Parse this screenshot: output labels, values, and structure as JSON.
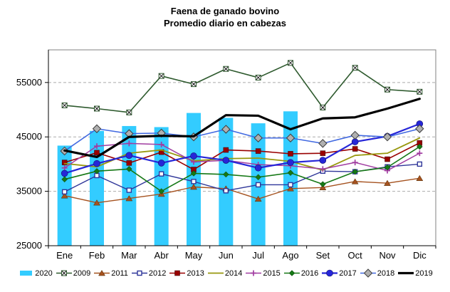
{
  "title": {
    "line1": "Faena de ganado bovino",
    "line2": "Promedio diario en cabezas"
  },
  "chart_data": {
    "type": "bar+line",
    "title": "Faena de ganado bovino",
    "subtitle": "Promedio diario en cabezas",
    "xlabel": "",
    "ylabel": "",
    "ylim": [
      25000,
      61000
    ],
    "yticks": [
      25000,
      35000,
      45000,
      55000
    ],
    "grid": true,
    "legend_position": "bottom",
    "categories": [
      "Ene",
      "Feb",
      "Mar",
      "Abr",
      "May",
      "Jun",
      "Jul",
      "Ago",
      "Set",
      "Oct",
      "Nov",
      "Dic"
    ],
    "bar_series": [
      {
        "name": "2020",
        "color": "#33CCFF",
        "values": [
          43400,
          46100,
          47000,
          46800,
          49400,
          48500,
          47500,
          49700,
          null,
          null,
          null,
          null
        ]
      }
    ],
    "line_series": [
      {
        "name": "2009",
        "color": "#2E5A2E",
        "marker": "x",
        "width": 1.6,
        "values": [
          50800,
          50200,
          49500,
          56200,
          54700,
          57500,
          55900,
          58600,
          50400,
          57700,
          53700,
          53300
        ]
      },
      {
        "name": "2011",
        "color": "#A5521F",
        "marker": "triangle",
        "width": 1.4,
        "values": [
          34200,
          32900,
          33700,
          34500,
          35800,
          35500,
          33600,
          35500,
          35700,
          36800,
          36500,
          37400
        ]
      },
      {
        "name": "2012",
        "color": "#2F3699",
        "marker": "open-square",
        "width": 1.4,
        "values": [
          34900,
          37900,
          35200,
          38200,
          36800,
          35100,
          36200,
          36200,
          38700,
          38600,
          39500,
          40000
        ]
      },
      {
        "name": "2013",
        "color": "#990000",
        "marker": "square",
        "width": 1.6,
        "values": [
          40300,
          42100,
          40200,
          42200,
          39000,
          42600,
          42400,
          41900,
          42000,
          42800,
          40900,
          43900
        ]
      },
      {
        "name": "2014",
        "color": "#98980E",
        "marker": "none",
        "width": 1.8,
        "values": [
          40100,
          39500,
          42000,
          42600,
          40600,
          41000,
          41100,
          40500,
          38900,
          41600,
          42000,
          44800
        ]
      },
      {
        "name": "2015",
        "color": "#A13DA1",
        "marker": "plus",
        "width": 1.5,
        "values": [
          39300,
          43300,
          43800,
          43600,
          40400,
          40700,
          39900,
          39700,
          39100,
          40300,
          38800,
          42000
        ]
      },
      {
        "name": "2016",
        "color": "#157815",
        "marker": "diamond",
        "width": 1.6,
        "values": [
          37200,
          38700,
          39100,
          35000,
          38300,
          38100,
          37600,
          38400,
          36300,
          38600,
          39400,
          43200
        ]
      },
      {
        "name": "2017",
        "color": "#2626D8",
        "marker": "circle",
        "width": 2.2,
        "values": [
          38300,
          40100,
          41600,
          40200,
          41500,
          40700,
          39300,
          40300,
          40700,
          44100,
          45100,
          47400
        ]
      },
      {
        "name": "2018",
        "color": "#4169E1",
        "marker": "gray-diamond",
        "width": 1.6,
        "values": [
          42400,
          46500,
          45600,
          45700,
          45000,
          46400,
          44800,
          44800,
          43800,
          45300,
          45000,
          46500
        ]
      },
      {
        "name": "2019",
        "color": "#000000",
        "marker": "none",
        "width": 3.2,
        "values": [
          42500,
          41300,
          45000,
          45200,
          45100,
          49000,
          48900,
          46400,
          48400,
          48600,
          50200,
          52000
        ]
      }
    ]
  }
}
